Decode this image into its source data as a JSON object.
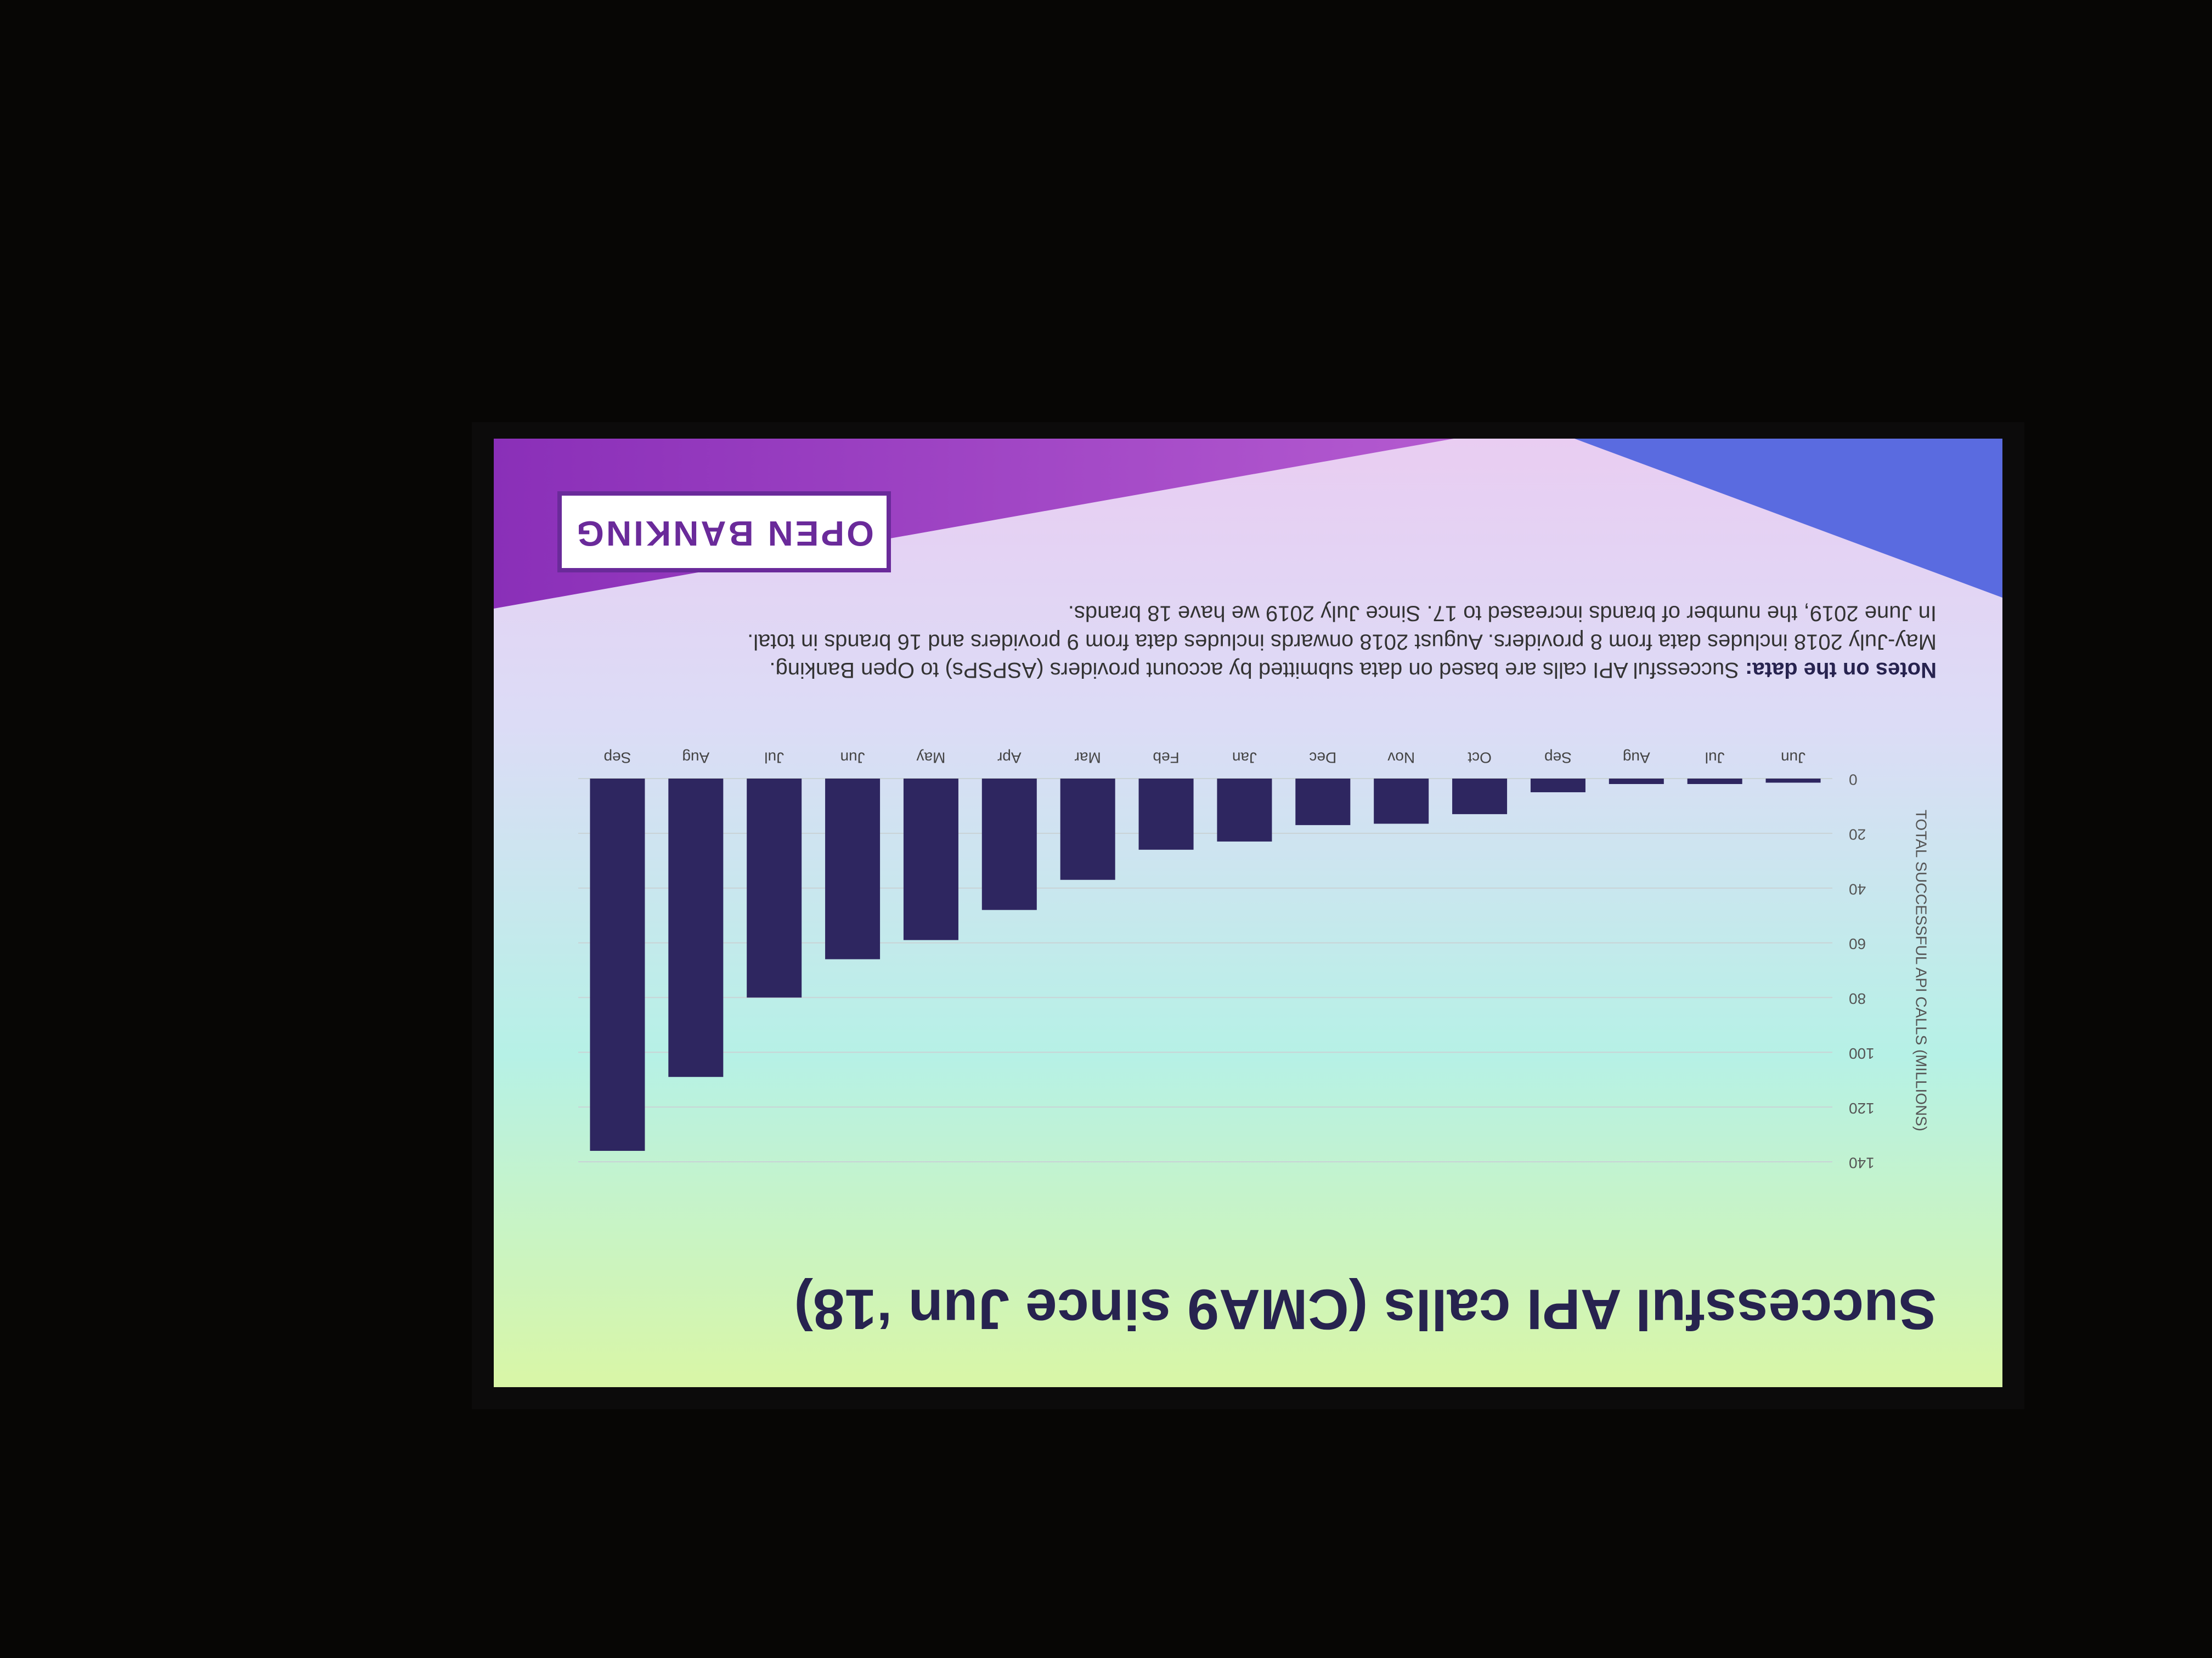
{
  "chart_data": {
    "type": "bar",
    "title": "Successful API calls (CMA9 since Jun ‘18)",
    "y_label": "TOTAL SUCCESSFUL API CALLS (MILLIONS)",
    "categories": [
      "Jun",
      "Jul",
      "Aug",
      "Sep",
      "Oct",
      "Nov",
      "Dec",
      "Jan",
      "Feb",
      "Mar",
      "Apr",
      "May",
      "Jun",
      "Jul",
      "Aug",
      "Sep"
    ],
    "values": [
      1.5,
      2,
      2,
      5,
      13,
      16.5,
      17,
      23,
      26,
      37,
      48,
      59,
      66,
      80,
      109,
      136
    ],
    "color": "#2e2660",
    "ylim": [
      0,
      140
    ],
    "yticks": [
      0,
      20,
      40,
      60,
      80,
      100,
      120,
      140
    ],
    "grid": true
  },
  "notes": {
    "label": "Notes on the data:",
    "lines": [
      "Successful API calls are based on data submitted by account providers (ASPSPs) to Open Banking.",
      "May-July 2018 includes data from 8 providers. August 2018 onwards includes data from 9 providers and 16 brands in total.",
      "In June 2019, the number of brands increased to 17. Since July 2019 we have 18 brands."
    ]
  },
  "logo": "OPEN BANKING"
}
